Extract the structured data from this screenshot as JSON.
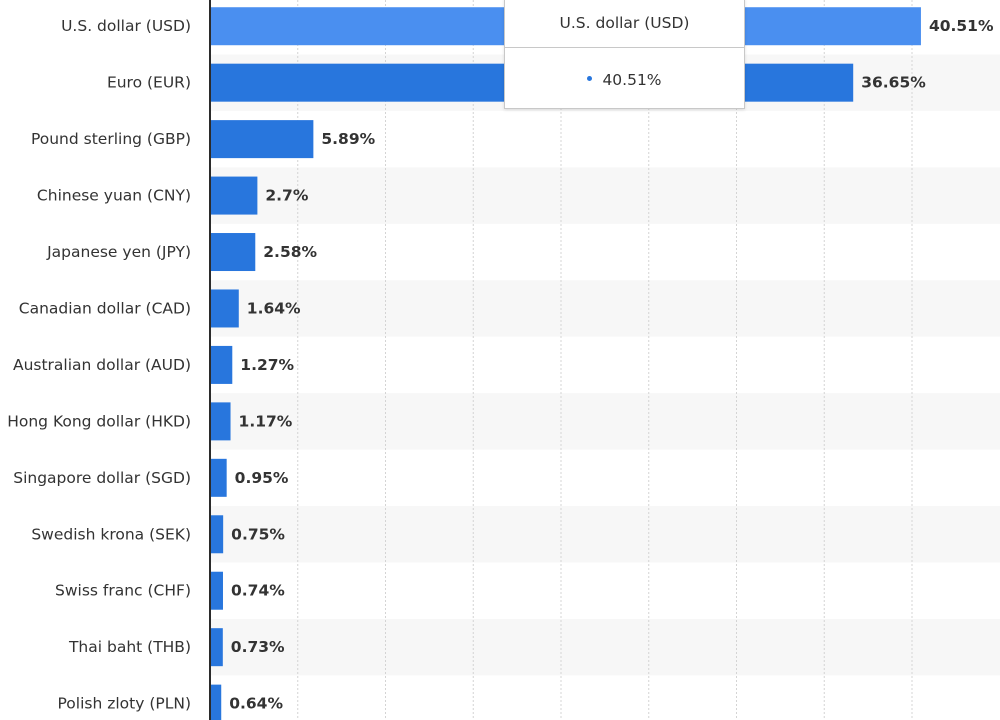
{
  "chart_data": {
    "type": "bar",
    "orientation": "horizontal",
    "categories": [
      "U.S. dollar (USD)",
      "Euro (EUR)",
      "Pound sterling (GBP)",
      "Chinese yuan (CNY)",
      "Japanese yen (JPY)",
      "Canadian dollar (CAD)",
      "Australian dollar (AUD)",
      "Hong Kong dollar (HKD)",
      "Singapore dollar (SGD)",
      "Swedish krona (SEK)",
      "Swiss franc (CHF)",
      "Thai baht (THB)",
      "Polish zloty (PLN)"
    ],
    "values": [
      40.51,
      36.65,
      5.89,
      2.7,
      2.58,
      1.64,
      1.27,
      1.17,
      0.95,
      0.75,
      0.74,
      0.73,
      0.64
    ],
    "value_labels": [
      "40.51%",
      "36.65%",
      "5.89%",
      "2.7%",
      "2.58%",
      "1.64%",
      "1.27%",
      "1.17%",
      "0.95%",
      "0.75%",
      "0.74%",
      "0.73%",
      "0.64%"
    ],
    "xlim": [
      0,
      45
    ],
    "grid": true,
    "highlighted_index": 0
  },
  "tooltip": {
    "title": "U.S. dollar (USD)",
    "value": "40.51%"
  },
  "colors": {
    "bar": "#2876dd",
    "bar_highlight": "#4a8ff0",
    "row_band": "#f7f7f7",
    "gridline": "#d4d4d4",
    "axis": "#2b2b2b",
    "text": "#333333"
  }
}
